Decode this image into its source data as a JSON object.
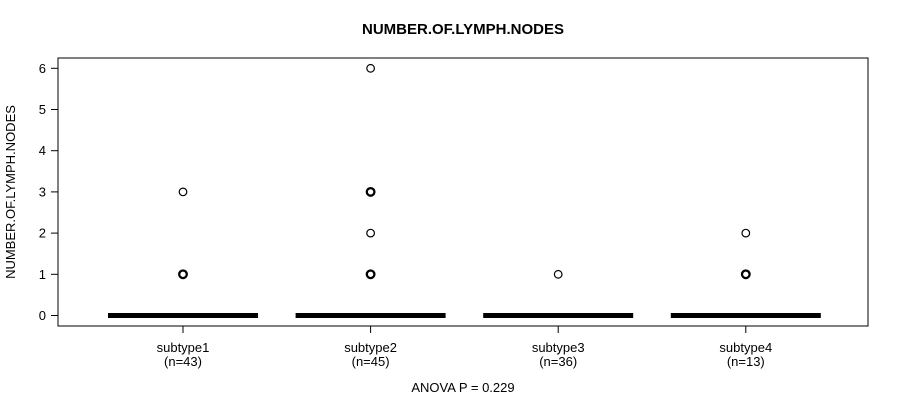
{
  "chart_data": {
    "type": "boxplot",
    "title": "NUMBER.OF.LYMPH.NODES",
    "ylabel": "NUMBER.OF.LYMPH.NODES",
    "xlabel": "",
    "annotation": "ANOVA P = 0.229",
    "ylim": [
      0,
      6
    ],
    "yticks": [
      0,
      1,
      2,
      3,
      4,
      5,
      6
    ],
    "grid": false,
    "legend": null,
    "colors": {
      "stroke": "#000000",
      "background": "#ffffff"
    },
    "groups": [
      {
        "label": "subtype1",
        "sublabel": "(n=43)",
        "n": 43,
        "median": 0,
        "q1": 0,
        "q3": 0,
        "whisker_low": 0,
        "whisker_high": 0,
        "outliers": [
          {
            "value": 3,
            "overplotted": false
          },
          {
            "value": 1,
            "overplotted": true
          }
        ]
      },
      {
        "label": "subtype2",
        "sublabel": "(n=45)",
        "n": 45,
        "median": 0,
        "q1": 0,
        "q3": 0,
        "whisker_low": 0,
        "whisker_high": 0,
        "outliers": [
          {
            "value": 6,
            "overplotted": false
          },
          {
            "value": 3,
            "overplotted": true
          },
          {
            "value": 2,
            "overplotted": false
          },
          {
            "value": 1,
            "overplotted": true
          }
        ]
      },
      {
        "label": "subtype3",
        "sublabel": "(n=36)",
        "n": 36,
        "median": 0,
        "q1": 0,
        "q3": 0,
        "whisker_low": 0,
        "whisker_high": 0,
        "outliers": [
          {
            "value": 1,
            "overplotted": false
          }
        ]
      },
      {
        "label": "subtype4",
        "sublabel": "(n=13)",
        "n": 13,
        "median": 0,
        "q1": 0,
        "q3": 0,
        "whisker_low": 0,
        "whisker_high": 0,
        "outliers": [
          {
            "value": 2,
            "overplotted": false
          },
          {
            "value": 1,
            "overplotted": true
          }
        ]
      }
    ]
  }
}
